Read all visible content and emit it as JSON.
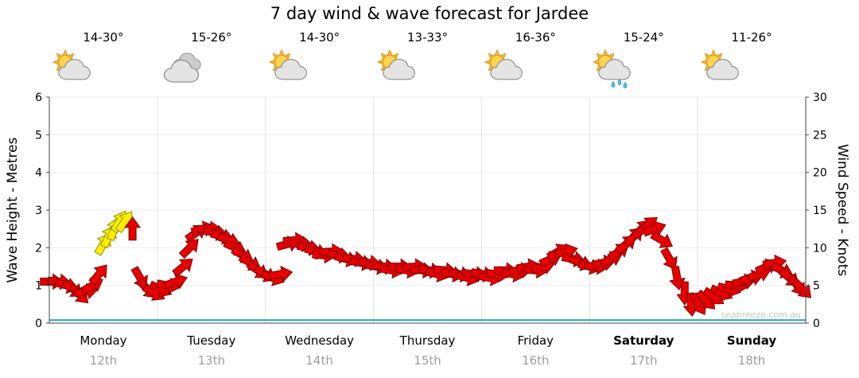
{
  "title": "7 day wind & wave forecast for Jardee",
  "watermark": "seabreeze.com.au",
  "days": [
    {
      "name": "Monday",
      "date": "12th",
      "temp": "14-30°",
      "icon": "partly-cloudy",
      "bold": false
    },
    {
      "name": "Tuesday",
      "date": "13th",
      "temp": "15-26°",
      "icon": "cloudy",
      "bold": false
    },
    {
      "name": "Wednesday",
      "date": "14th",
      "temp": "14-30°",
      "icon": "partly-cloudy",
      "bold": false
    },
    {
      "name": "Thursday",
      "date": "15th",
      "temp": "13-33°",
      "icon": "partly-cloudy",
      "bold": false
    },
    {
      "name": "Friday",
      "date": "16th",
      "temp": "16-36°",
      "icon": "partly-cloudy",
      "bold": false
    },
    {
      "name": "Saturday",
      "date": "17th",
      "temp": "15-24°",
      "icon": "partly-cloudy-rain",
      "bold": true
    },
    {
      "name": "Sunday",
      "date": "18th",
      "temp": "11-26°",
      "icon": "partly-cloudy",
      "bold": true
    }
  ],
  "chart_data": {
    "type": "wind-arrows",
    "title": "7 day wind & wave forecast for Jardee",
    "x_categories": [
      "Monday 12th",
      "Tuesday 13th",
      "Wednesday 14th",
      "Thursday 15th",
      "Friday 16th",
      "Saturday 17th",
      "Sunday 18th"
    ],
    "left_axis": {
      "label": "Wave Height - Metres",
      "min": 0,
      "max": 6,
      "ticks": [
        0,
        1,
        2,
        3,
        4,
        5,
        6
      ]
    },
    "right_axis": {
      "label": "Wind Speed - Knots",
      "min": 0,
      "max": 30,
      "ticks": [
        0,
        5,
        10,
        15,
        20,
        25,
        30
      ]
    },
    "grid": "faint horizontal metre lines and vertical day separators",
    "wave_height_series": {
      "color": "#1fa8a8",
      "constant_m": 0.08
    },
    "arrow_colors": {
      "red": "#e60000",
      "red_outline": "#7f0000",
      "yellow": "#ffee00",
      "yellow_outline": "#8f8f00"
    },
    "arrows_format": [
      "day_offset_from_monday",
      "wind_speed_knots",
      "direction_deg_cw_from_east",
      "color r=red y=yellow"
    ],
    "arrows": [
      [
        0.02,
        5.5,
        0,
        "r"
      ],
      [
        0.09,
        5.5,
        5,
        "r"
      ],
      [
        0.16,
        5,
        15,
        "r"
      ],
      [
        0.22,
        4.5,
        35,
        "r"
      ],
      [
        0.28,
        3.8,
        45,
        "r"
      ],
      [
        0.34,
        4.2,
        -10,
        "r"
      ],
      [
        0.4,
        5,
        -30,
        "r"
      ],
      [
        0.46,
        6.5,
        -50,
        "r"
      ],
      [
        0.5,
        10.5,
        -60,
        "y"
      ],
      [
        0.55,
        11.5,
        -65,
        "y"
      ],
      [
        0.6,
        12.5,
        -70,
        "y"
      ],
      [
        0.65,
        13.5,
        -60,
        "y"
      ],
      [
        0.7,
        13.5,
        -55,
        "y"
      ],
      [
        0.77,
        12.5,
        -90,
        "r"
      ],
      [
        0.84,
        6,
        60,
        "r"
      ],
      [
        0.91,
        4.5,
        45,
        "r"
      ],
      [
        0.97,
        4,
        30,
        "r"
      ],
      [
        1.03,
        4.5,
        25,
        "r"
      ],
      [
        1.1,
        5,
        10,
        "r"
      ],
      [
        1.17,
        5.5,
        -20,
        "r"
      ],
      [
        1.24,
        7.5,
        -40,
        "r"
      ],
      [
        1.3,
        10,
        -45,
        "r"
      ],
      [
        1.36,
        12,
        -35,
        "r"
      ],
      [
        1.42,
        12.5,
        -15,
        "r"
      ],
      [
        1.48,
        12.5,
        0,
        "r"
      ],
      [
        1.54,
        12,
        10,
        "r"
      ],
      [
        1.6,
        11.5,
        15,
        "r"
      ],
      [
        1.66,
        11,
        20,
        "r"
      ],
      [
        1.72,
        10,
        25,
        "r"
      ],
      [
        1.79,
        9,
        30,
        "r"
      ],
      [
        1.86,
        8,
        30,
        "r"
      ],
      [
        1.93,
        7,
        35,
        "r"
      ],
      [
        2.0,
        6.5,
        30,
        "r"
      ],
      [
        2.07,
        6,
        20,
        "r"
      ],
      [
        2.14,
        6.5,
        -10,
        "r"
      ],
      [
        2.21,
        10.5,
        -15,
        "r"
      ],
      [
        2.27,
        11,
        -5,
        "r"
      ],
      [
        2.33,
        10.5,
        5,
        "r"
      ],
      [
        2.4,
        10,
        10,
        "r"
      ],
      [
        2.47,
        9.5,
        15,
        "r"
      ],
      [
        2.54,
        9,
        5,
        "r"
      ],
      [
        2.61,
        9.5,
        -5,
        "r"
      ],
      [
        2.68,
        9,
        10,
        "r"
      ],
      [
        2.75,
        8.5,
        15,
        "r"
      ],
      [
        2.82,
        8.5,
        5,
        "r"
      ],
      [
        2.89,
        8,
        10,
        "r"
      ],
      [
        2.96,
        8,
        5,
        "r"
      ],
      [
        3.03,
        7.5,
        10,
        "r"
      ],
      [
        3.1,
        7.5,
        5,
        "r"
      ],
      [
        3.17,
        7,
        10,
        "r"
      ],
      [
        3.24,
        7.5,
        0,
        "r"
      ],
      [
        3.31,
        7,
        10,
        "r"
      ],
      [
        3.38,
        7.5,
        -5,
        "r"
      ],
      [
        3.45,
        7,
        5,
        "r"
      ],
      [
        3.52,
        7,
        10,
        "r"
      ],
      [
        3.59,
        6.5,
        15,
        "r"
      ],
      [
        3.66,
        7,
        5,
        "r"
      ],
      [
        3.73,
        6.5,
        10,
        "r"
      ],
      [
        3.8,
        6.5,
        10,
        "r"
      ],
      [
        3.87,
        6,
        15,
        "r"
      ],
      [
        3.94,
        6.5,
        5,
        "r"
      ],
      [
        4.01,
        6.5,
        10,
        "r"
      ],
      [
        4.08,
        6,
        10,
        "r"
      ],
      [
        4.15,
        6.5,
        5,
        "r"
      ],
      [
        4.22,
        7,
        0,
        "r"
      ],
      [
        4.29,
        6.5,
        10,
        "r"
      ],
      [
        4.36,
        7,
        -5,
        "r"
      ],
      [
        4.43,
        7.5,
        -10,
        "r"
      ],
      [
        4.5,
        7,
        5,
        "r"
      ],
      [
        4.57,
        7.5,
        -15,
        "r"
      ],
      [
        4.64,
        8.5,
        -25,
        "r"
      ],
      [
        4.71,
        9.5,
        -30,
        "r"
      ],
      [
        4.78,
        9.5,
        -15,
        "r"
      ],
      [
        4.85,
        8.5,
        10,
        "r"
      ],
      [
        4.92,
        8,
        20,
        "r"
      ],
      [
        5.0,
        7.5,
        15,
        "r"
      ],
      [
        5.06,
        7.5,
        5,
        "r"
      ],
      [
        5.13,
        8,
        -10,
        "r"
      ],
      [
        5.2,
        8.5,
        -25,
        "r"
      ],
      [
        5.27,
        9.5,
        -35,
        "r"
      ],
      [
        5.34,
        10.5,
        -40,
        "r"
      ],
      [
        5.41,
        11.5,
        -45,
        "r"
      ],
      [
        5.48,
        12.5,
        -45,
        "r"
      ],
      [
        5.54,
        13,
        -40,
        "r"
      ],
      [
        5.6,
        12.5,
        -20,
        "r"
      ],
      [
        5.67,
        11,
        30,
        "r"
      ],
      [
        5.74,
        8.5,
        60,
        "r"
      ],
      [
        5.81,
        6,
        80,
        "r"
      ],
      [
        5.88,
        4,
        90,
        "r"
      ],
      [
        5.94,
        2.5,
        85,
        "r"
      ],
      [
        6.01,
        2.5,
        60,
        "r"
      ],
      [
        6.08,
        3,
        45,
        "r"
      ],
      [
        6.15,
        3.5,
        35,
        "r"
      ],
      [
        6.22,
        4,
        25,
        "r"
      ],
      [
        6.29,
        4.5,
        15,
        "r"
      ],
      [
        6.36,
        5,
        5,
        "r"
      ],
      [
        6.43,
        5.5,
        -10,
        "r"
      ],
      [
        6.5,
        6,
        -15,
        "r"
      ],
      [
        6.57,
        6.5,
        -20,
        "r"
      ],
      [
        6.64,
        7.5,
        -25,
        "r"
      ],
      [
        6.71,
        8,
        -10,
        "r"
      ],
      [
        6.78,
        7,
        25,
        "r"
      ],
      [
        6.85,
        6,
        40,
        "r"
      ],
      [
        6.92,
        5,
        55,
        "r"
      ],
      [
        6.97,
        4.5,
        45,
        "r"
      ]
    ]
  }
}
